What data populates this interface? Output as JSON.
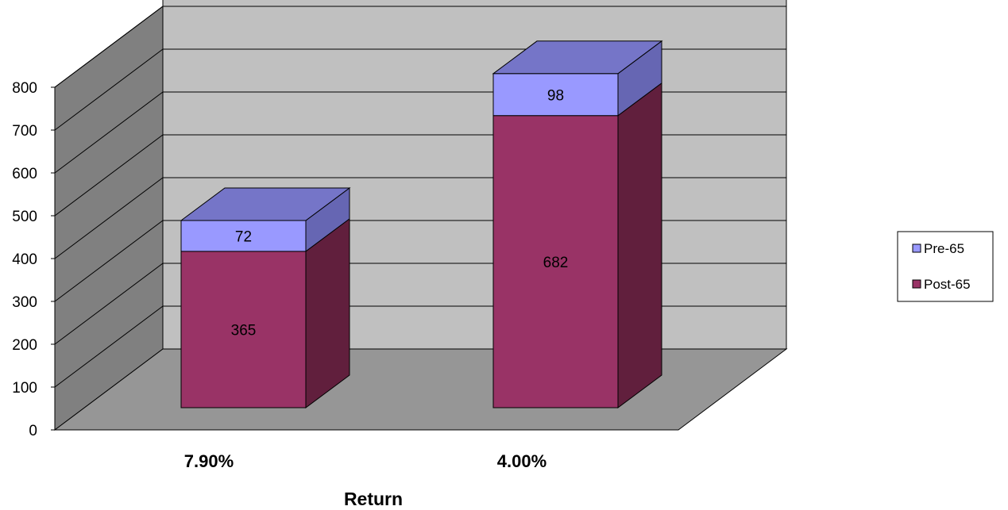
{
  "chart_data": {
    "type": "bar",
    "stacked": true,
    "three_d": true,
    "categories": [
      "7.90%",
      "4.00%"
    ],
    "series": [
      {
        "name": "Post-65",
        "values": [
          365,
          682
        ],
        "color": "#993366"
      },
      {
        "name": "Pre-65",
        "values": [
          72,
          98
        ],
        "color": "#9999ff"
      }
    ],
    "xlabel": "Return",
    "ylabel": "",
    "ylim": [
      0,
      800
    ],
    "yticks": [
      "0",
      "100",
      "200",
      "300",
      "400",
      "500",
      "600",
      "700",
      "800"
    ],
    "grid": true,
    "legend": "right",
    "legend_order": [
      "Pre-65",
      "Post-65"
    ],
    "colors": {
      "back_wall": "#c0c0c0",
      "side_wall": "#808080",
      "floor": "#969696",
      "post65_side": "#611f3d",
      "post65_top": "#7a2a50",
      "pre65_side": "#6666b3",
      "pre65_top": "#7575c8"
    }
  }
}
